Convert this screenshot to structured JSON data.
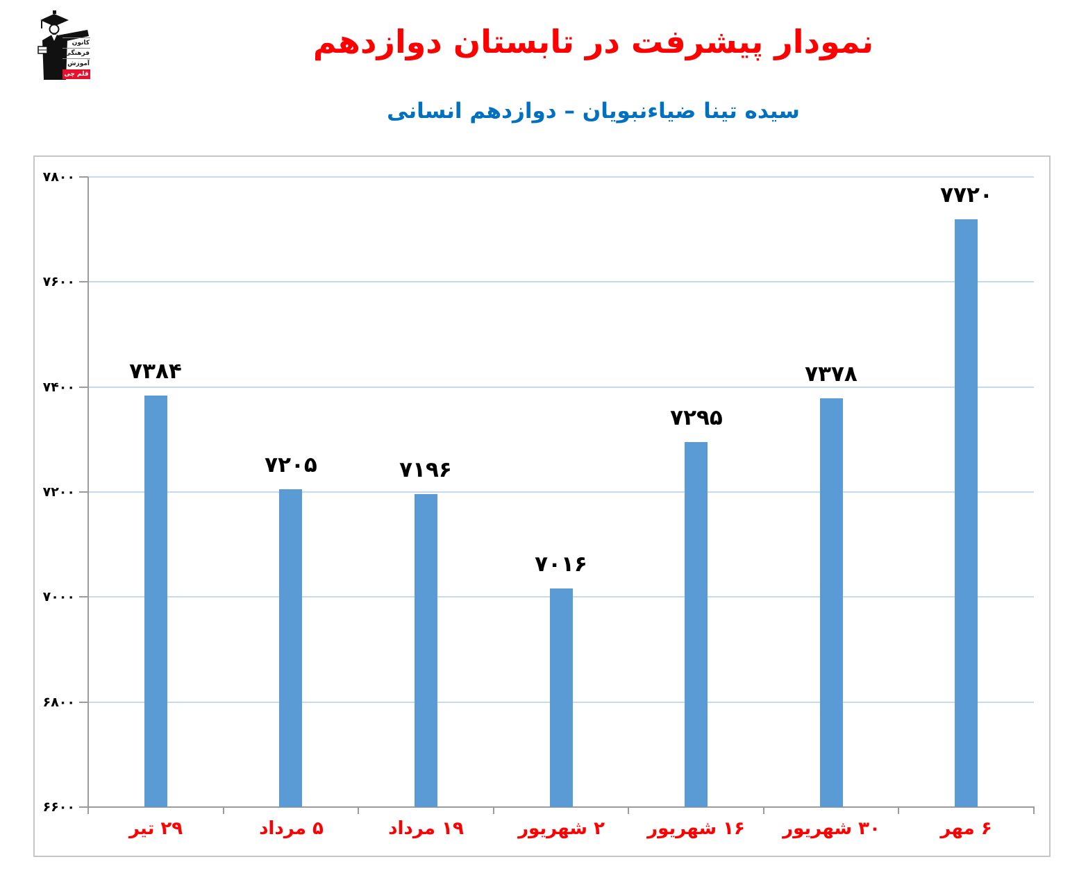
{
  "logo": {
    "line1": "کانون",
    "line2": "فرهنگی",
    "line3": "آموزش",
    "badge": "قلم چی",
    "badge_color": "#e8112d"
  },
  "header": {
    "title": "نمودار پیشرفت در تابستان دوازدهم",
    "subtitle": "سیده تینا ضیاءنبویان – دوازدهم انسانی",
    "title_color": "#ff0000",
    "subtitle_color": "#0070c0"
  },
  "chart_data": {
    "type": "bar",
    "title": "نمودار پیشرفت در تابستان دوازدهم",
    "subtitle": "سیده تینا ضیاءنبویان – دوازدهم انسانی",
    "categories": [
      "۲۹ تیر",
      "۵ مرداد",
      "۱۹ مرداد",
      "۲ شهریور",
      "۱۶ شهریور",
      "۳۰ شهریور",
      "۶ مهر"
    ],
    "values": [
      7384,
      7205,
      7196,
      7016,
      7295,
      7378,
      7720
    ],
    "value_labels": [
      "۷۳۸۴",
      "۷۲۰۵",
      "۷۱۹۶",
      "۷۰۱۶",
      "۷۲۹۵",
      "۷۳۷۸",
      "۷۷۲۰"
    ],
    "y_ticks": [
      6600,
      6800,
      7000,
      7200,
      7400,
      7600,
      7800
    ],
    "y_tick_labels": [
      "۶۶۰۰",
      "۶۸۰۰",
      "۷۰۰۰",
      "۷۲۰۰",
      "۷۴۰۰",
      "۷۶۰۰",
      "۷۸۰۰"
    ],
    "ylim": [
      6600,
      7800
    ],
    "xlabel": "",
    "ylabel": "",
    "grid": true,
    "legend": "none",
    "bar_color": "#5b9bd5",
    "gridline_color": "#c5d9f1",
    "axis_color": "#9b9b9b",
    "value_label_color": "#000000",
    "x_label_color": "#ff0000"
  }
}
